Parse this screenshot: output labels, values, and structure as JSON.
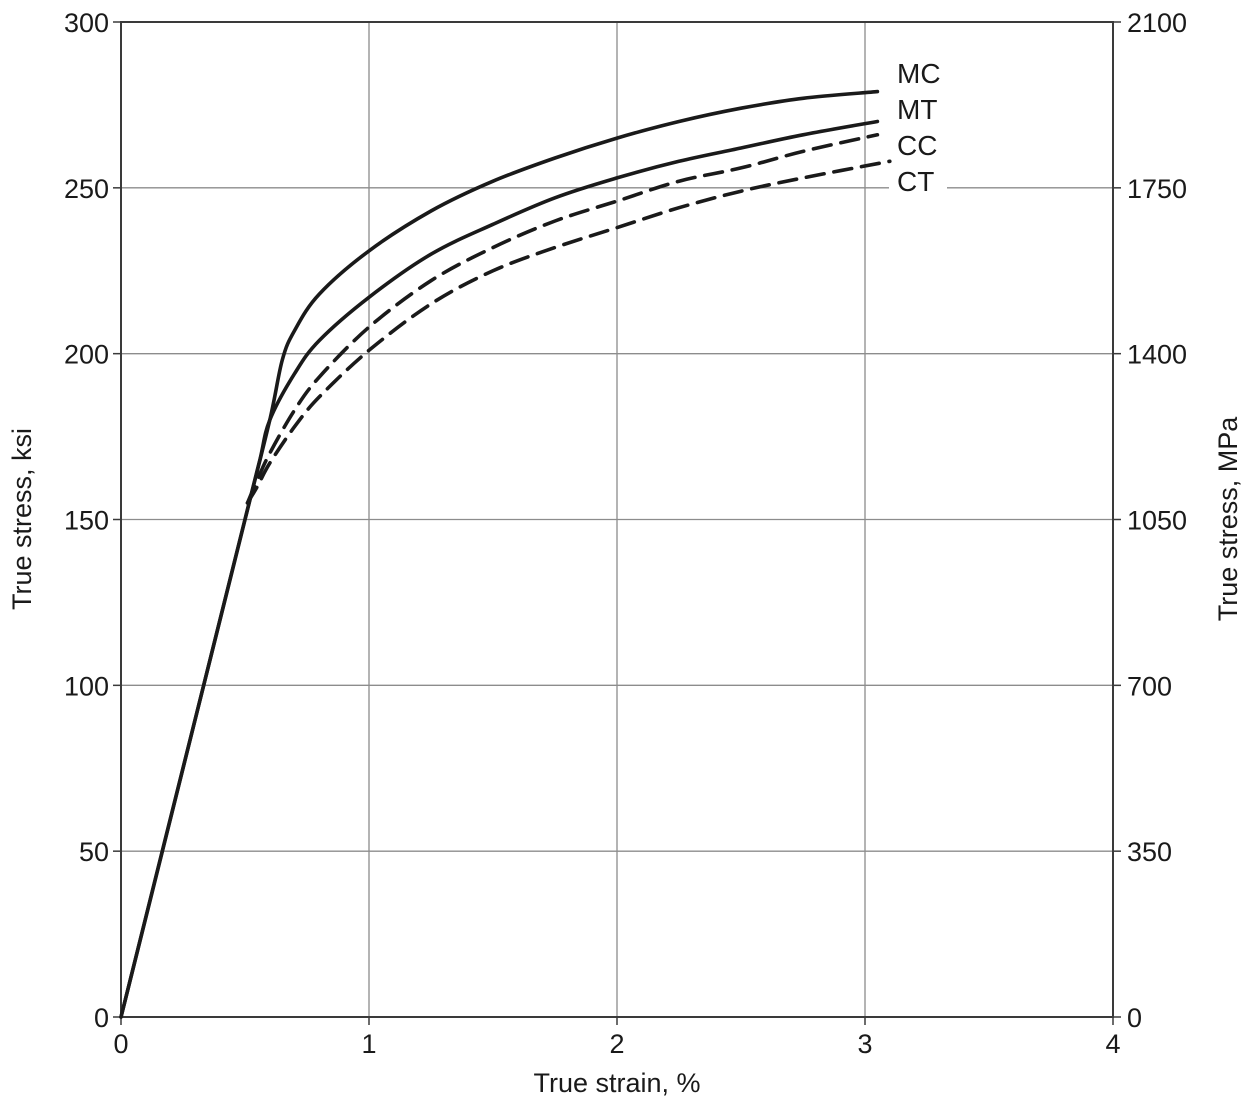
{
  "chart_data": {
    "type": "line",
    "title": "",
    "xlabel": "True strain, %",
    "ylabel": "True stress, ksi",
    "y2label": "True stress, MPa",
    "xlim": [
      0,
      4
    ],
    "ylim": [
      0,
      300
    ],
    "y2lim": [
      0,
      2100
    ],
    "x_ticks": [
      "0",
      "1",
      "2",
      "3",
      "4"
    ],
    "y_ticks": [
      "0",
      "50",
      "100",
      "150",
      "200",
      "250",
      "300"
    ],
    "y2_ticks": [
      "0",
      "350",
      "700",
      "1050",
      "1400",
      "1750",
      "2100"
    ],
    "grid": true,
    "legend": "direct labels at right end of curves",
    "series": [
      {
        "name": "MC",
        "style": "solid",
        "x": [
          0,
          0.3,
          0.5,
          0.6,
          0.65,
          0.7,
          0.8,
          1.0,
          1.25,
          1.5,
          1.75,
          2.0,
          2.25,
          2.5,
          2.75,
          3.05
        ],
        "y": [
          0,
          90,
          150,
          180,
          198,
          207,
          218,
          231,
          243,
          252,
          259,
          265,
          270,
          274,
          277,
          279
        ]
      },
      {
        "name": "MT",
        "style": "solid",
        "x": [
          0,
          0.3,
          0.5,
          0.56,
          0.6,
          0.7,
          0.8,
          1.0,
          1.25,
          1.5,
          1.75,
          2.0,
          2.25,
          2.5,
          2.75,
          3.05
        ],
        "y": [
          0,
          90,
          150,
          168,
          180,
          194,
          204,
          217,
          230,
          239,
          247,
          253,
          258,
          262,
          266,
          270
        ]
      },
      {
        "name": "CC",
        "style": "dashed",
        "x": [
          0.51,
          0.55,
          0.6,
          0.7,
          0.8,
          1.0,
          1.25,
          1.5,
          1.75,
          2.0,
          2.25,
          2.5,
          2.75,
          3.05
        ],
        "y": [
          155,
          162,
          170,
          183,
          193,
          208,
          222,
          232,
          240,
          246,
          252,
          256,
          261,
          266
        ]
      },
      {
        "name": "CT",
        "style": "dashed",
        "x": [
          0.51,
          0.55,
          0.6,
          0.7,
          0.8,
          1.0,
          1.25,
          1.5,
          1.75,
          2.0,
          2.25,
          2.5,
          2.75,
          3.1
        ],
        "y": [
          155,
          160,
          167,
          178,
          187,
          201,
          215,
          225,
          232,
          238,
          244,
          249,
          253,
          258
        ]
      }
    ],
    "colors": {
      "line": "#1a1a1a",
      "grid": "#8c8c8c",
      "background": "#ffffff"
    }
  }
}
